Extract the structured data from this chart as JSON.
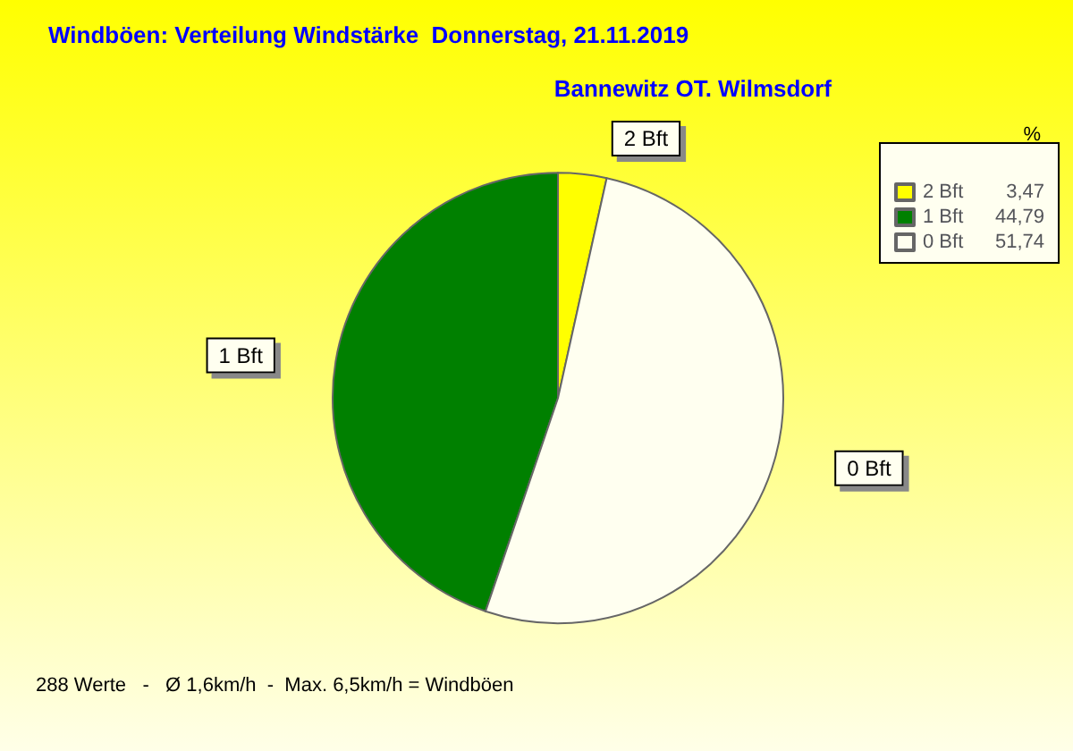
{
  "chart_data": {
    "type": "pie",
    "title": "Windböen: Verteilung Windstärke  Donnerstag, 21.11.2019",
    "subtitle": "Bannewitz OT. Wilmsdorf",
    "legend_title": "%",
    "categories": [
      "2 Bft",
      "1 Bft",
      "0 Bft"
    ],
    "values": [
      3.47,
      44.79,
      51.74
    ],
    "value_labels": [
      "3,47",
      "44,79",
      "51,74"
    ],
    "colors": [
      "#ffff00",
      "#008000",
      "#fffff0"
    ],
    "legend": "top right",
    "annotations": [
      "288 Werte   -   Ø 1,6km/h  -  Max. 6,5km/h = Windböen"
    ]
  }
}
